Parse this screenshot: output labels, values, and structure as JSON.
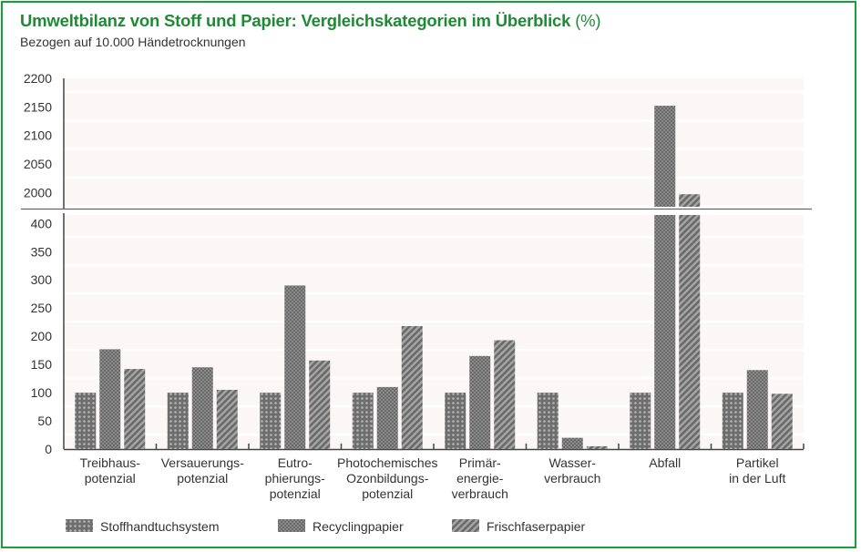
{
  "title": "Umweltbilanz von Stoff und Papier: Vergleichskategorien im Überblick",
  "title_unit": "(%)",
  "subtitle": "Bezogen auf 10.000 Händetrocknungen",
  "colors": {
    "accent": "#1f8a35",
    "bar": "#7a7a7a",
    "grid_bg": "#fbf7f7"
  },
  "chart_data": {
    "type": "bar",
    "title": "Umweltbilanz von Stoff und Papier: Vergleichskategorien im Überblick (%)",
    "subtitle": "Bezogen auf 10.000 Händetrocknungen",
    "xlabel": "",
    "ylabel": "%",
    "broken_axis": true,
    "ylim_lower": [
      0,
      415
    ],
    "ylim_upper": [
      1975,
      2200
    ],
    "yticks_lower": [
      0,
      50,
      100,
      150,
      200,
      250,
      300,
      350,
      400
    ],
    "yticks_upper": [
      2000,
      2050,
      2100,
      2150,
      2200
    ],
    "legend_position": "bottom",
    "categories": [
      [
        "Treibhaus-",
        "potenzial"
      ],
      [
        "Versauerungs-",
        "potenzial"
      ],
      [
        "Eutro-",
        "phierungs-",
        "potenzial"
      ],
      [
        "Photochemisches",
        "Ozonbildungs-",
        "potenzial"
      ],
      [
        "Primär-",
        "energie-",
        "verbrauch"
      ],
      [
        "Wasser-",
        "verbrauch"
      ],
      [
        "Abfall"
      ],
      [
        "Partikel",
        "in der Luft"
      ]
    ],
    "series": [
      {
        "name": "Stoffhandtuchsystem",
        "pattern": "dots",
        "values": [
          100,
          100,
          100,
          100,
          100,
          100,
          100,
          100
        ]
      },
      {
        "name": "Recyclingpapier",
        "pattern": "checker",
        "values": [
          177,
          145,
          290,
          110,
          165,
          20,
          2152,
          140
        ]
      },
      {
        "name": "Frischfaserpapier",
        "pattern": "diagonal",
        "values": [
          142,
          105,
          157,
          218,
          193,
          5,
          1997,
          98
        ]
      }
    ]
  }
}
